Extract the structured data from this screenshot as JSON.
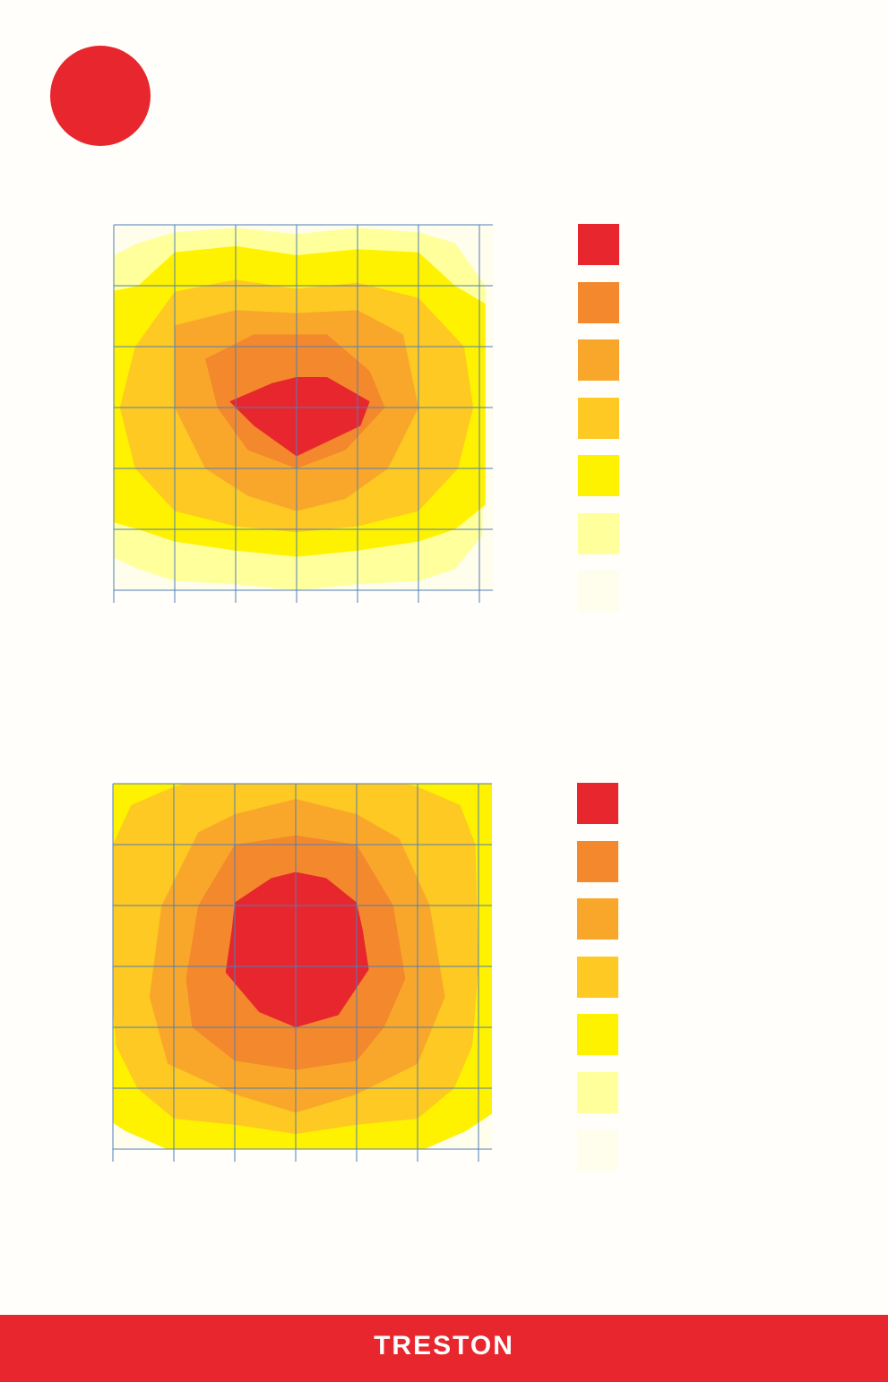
{
  "colors": {
    "accent": "#e8262d",
    "gridline": "#4f7fb8",
    "levels": [
      "#e8262d",
      "#f3882c",
      "#f9a72a",
      "#fdc922",
      "#fff200",
      "#ffff9c",
      "#fffdec"
    ]
  },
  "brand": {
    "logo_text": "TRESTON"
  },
  "chart_data": [
    {
      "type": "heatmap",
      "grid": {
        "columns": 6,
        "rows": 6,
        "gridlines": true
      },
      "levels": 7,
      "peak_level": 0,
      "legend_placement": "right",
      "contours": [
        {
          "level": 6,
          "rings": [
            [
              [
                0,
                -1
              ],
              [
                7,
                -1
              ],
              [
                7,
                7
              ],
              [
                0,
                7
              ]
            ]
          ]
        },
        {
          "level": 5,
          "rings": [
            [
              [
                0.4,
                0.3
              ],
              [
                1,
                0.12
              ],
              [
                2,
                0.05
              ],
              [
                3,
                0.15
              ],
              [
                4,
                0.05
              ],
              [
                5,
                0.12
              ],
              [
                5.6,
                0.3
              ],
              [
                6.1,
                1
              ],
              [
                6.05,
                5.1
              ],
              [
                5.6,
                5.65
              ],
              [
                5,
                5.85
              ],
              [
                4,
                5.9
              ],
              [
                3,
                6
              ],
              [
                2,
                5.9
              ],
              [
                1,
                5.85
              ],
              [
                0.4,
                5.65
              ],
              [
                -1,
                5
              ],
              [
                -1,
                1
              ]
            ]
          ]
        },
        {
          "level": 4,
          "rings": [
            [
              [
                1,
                0.45
              ],
              [
                2,
                0.35
              ],
              [
                3,
                0.5
              ],
              [
                4,
                0.4
              ],
              [
                5,
                0.45
              ],
              [
                5.6,
                1
              ],
              [
                6.1,
                1.3
              ],
              [
                6.1,
                4.6
              ],
              [
                5.6,
                5
              ],
              [
                5,
                5.2
              ],
              [
                4,
                5.35
              ],
              [
                3,
                5.45
              ],
              [
                2,
                5.35
              ],
              [
                1,
                5.2
              ],
              [
                0.4,
                5
              ],
              [
                -1,
                4.6
              ],
              [
                -1,
                1.3
              ],
              [
                0.4,
                1
              ]
            ]
          ]
        },
        {
          "level": 3,
          "rings": [
            [
              [
                1,
                1.1
              ],
              [
                2,
                0.9
              ],
              [
                3,
                1.05
              ],
              [
                4,
                0.95
              ],
              [
                5,
                1.2
              ],
              [
                5.75,
                2
              ],
              [
                5.9,
                3
              ],
              [
                5.65,
                4
              ],
              [
                5,
                4.7
              ],
              [
                4,
                4.95
              ],
              [
                3,
                5.05
              ],
              [
                2,
                4.95
              ],
              [
                1,
                4.7
              ],
              [
                0.35,
                4
              ],
              [
                0.1,
                3
              ],
              [
                0.35,
                2
              ]
            ]
          ]
        },
        {
          "level": 2,
          "rings": [
            [
              [
                1,
                1.65
              ],
              [
                2,
                1.4
              ],
              [
                3,
                1.45
              ],
              [
                4,
                1.4
              ],
              [
                4.75,
                1.8
              ],
              [
                5,
                3
              ],
              [
                4.5,
                4
              ],
              [
                3.8,
                4.5
              ],
              [
                3,
                4.7
              ],
              [
                2.2,
                4.45
              ],
              [
                1.5,
                4
              ],
              [
                1,
                3
              ]
            ]
          ]
        },
        {
          "level": 1,
          "rings": [
            [
              [
                1.5,
                2.2
              ],
              [
                2.3,
                1.8
              ],
              [
                3.5,
                1.8
              ],
              [
                4.2,
                2.4
              ],
              [
                4.45,
                3
              ],
              [
                3.8,
                3.7
              ],
              [
                3,
                4
              ],
              [
                2.2,
                3.7
              ],
              [
                1.7,
                3
              ]
            ]
          ]
        },
        {
          "level": 0,
          "rings": [
            [
              [
                1.9,
                2.9
              ],
              [
                2.6,
                2.6
              ],
              [
                3,
                2.5
              ],
              [
                3.5,
                2.5
              ],
              [
                4.2,
                2.9
              ],
              [
                4.05,
                3.3
              ],
              [
                3,
                3.8
              ],
              [
                2.3,
                3.3
              ]
            ]
          ]
        }
      ]
    },
    {
      "type": "heatmap",
      "grid": {
        "columns": 6,
        "rows": 6,
        "gridlines": true
      },
      "levels": 7,
      "peak_level": 0,
      "legend_placement": "right",
      "contours": [
        {
          "level": 6,
          "rings": [
            [
              [
                0,
                -1
              ],
              [
                7,
                -1
              ],
              [
                7,
                7
              ],
              [
                0,
                7
              ]
            ]
          ]
        },
        {
          "level": 4,
          "rings": [
            [
              [
                -1,
                -1
              ],
              [
                7,
                -1
              ],
              [
                7,
                4.9
              ],
              [
                5.8,
                5.7
              ],
              [
                5,
                6.05
              ],
              [
                3,
                6.1
              ],
              [
                1,
                6.05
              ],
              [
                0.2,
                5.7
              ],
              [
                -1,
                4.9
              ]
            ]
          ]
        },
        {
          "level": 3,
          "rings": [
            [
              [
                0.3,
                0.35
              ],
              [
                1,
                0.05
              ],
              [
                2,
                -0.2
              ],
              [
                3,
                -0.2
              ],
              [
                4,
                -0.2
              ],
              [
                5,
                0.05
              ],
              [
                5.7,
                0.35
              ],
              [
                5.95,
                1
              ],
              [
                6,
                3
              ],
              [
                5.9,
                4.3
              ],
              [
                5.6,
                5
              ],
              [
                5,
                5.5
              ],
              [
                4,
                5.6
              ],
              [
                3,
                5.75
              ],
              [
                2,
                5.6
              ],
              [
                1,
                5.5
              ],
              [
                0.4,
                5
              ],
              [
                0.05,
                4.3
              ],
              [
                -0.05,
                3
              ],
              [
                0,
                1
              ]
            ]
          ]
        },
        {
          "level": 2,
          "rings": [
            [
              [
                1.4,
                0.8
              ],
              [
                2,
                0.5
              ],
              [
                3,
                0.25
              ],
              [
                4,
                0.5
              ],
              [
                4.7,
                0.9
              ],
              [
                5.2,
                2
              ],
              [
                5.45,
                3.5
              ],
              [
                5,
                4.6
              ],
              [
                4,
                5.1
              ],
              [
                3,
                5.4
              ],
              [
                2,
                5.1
              ],
              [
                0.9,
                4.6
              ],
              [
                0.6,
                3.5
              ],
              [
                0.8,
                2
              ]
            ]
          ]
        },
        {
          "level": 1,
          "rings": [
            [
              [
                2,
                1
              ],
              [
                3,
                0.85
              ],
              [
                4,
                1
              ],
              [
                4.6,
                2
              ],
              [
                4.8,
                3.2
              ],
              [
                4.45,
                4
              ],
              [
                4,
                4.55
              ],
              [
                3,
                4.7
              ],
              [
                2,
                4.55
              ],
              [
                1.3,
                4
              ],
              [
                1.2,
                3.2
              ],
              [
                1.4,
                2
              ]
            ]
          ]
        },
        {
          "level": 0,
          "rings": [
            [
              [
                2,
                1.95
              ],
              [
                2.6,
                1.55
              ],
              [
                3,
                1.45
              ],
              [
                3.5,
                1.55
              ],
              [
                4,
                1.95
              ],
              [
                4.1,
                2.4
              ],
              [
                4.2,
                3.05
              ],
              [
                3.7,
                3.8
              ],
              [
                3,
                4
              ],
              [
                2.4,
                3.75
              ],
              [
                1.85,
                3.1
              ],
              [
                1.95,
                2.4
              ]
            ]
          ]
        }
      ]
    }
  ]
}
